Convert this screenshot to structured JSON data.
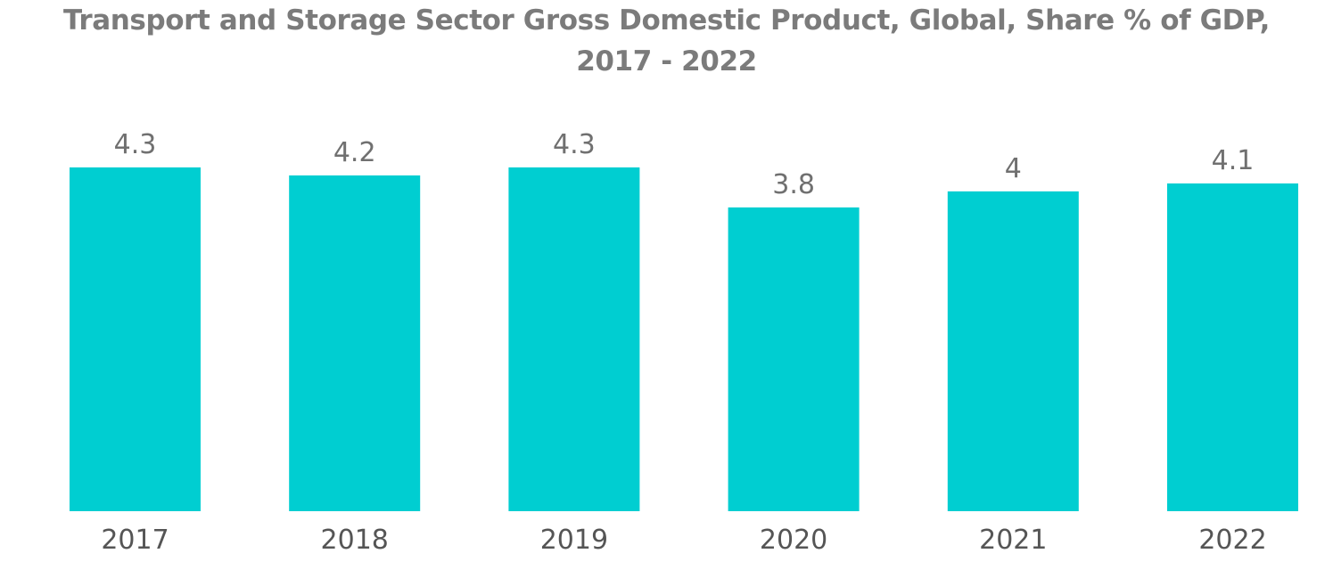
{
  "chart_data": {
    "type": "bar",
    "title_line1": "Transport and Storage Sector Gross Domestic Product, Global, Share % of GDP,",
    "title_line2": "2017 - 2022",
    "categories": [
      "2017",
      "2018",
      "2019",
      "2020",
      "2021",
      "2022"
    ],
    "values": [
      4.3,
      4.2,
      4.3,
      3.8,
      4,
      4.1
    ],
    "value_labels": [
      "4.3",
      "4.2",
      "4.3",
      "3.8",
      "4",
      "4.1"
    ],
    "xlabel": "",
    "ylabel": "",
    "ylim": [
      0,
      4.3
    ],
    "grid": false,
    "legend": "none",
    "bar_color": "#00ced1"
  }
}
